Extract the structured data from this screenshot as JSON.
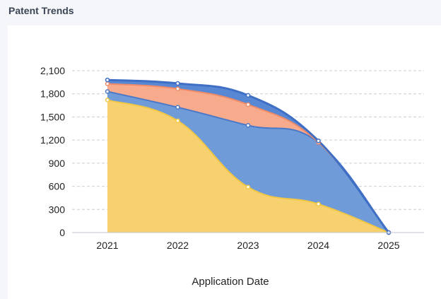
{
  "panel": {
    "title": "Patent Trends"
  },
  "chart_data": {
    "type": "area",
    "stacked": true,
    "title": "",
    "xlabel": "Application Date",
    "ylabel": "",
    "ylim": [
      0,
      2100
    ],
    "yticks": [
      "0",
      "300",
      "600",
      "900",
      "1,200",
      "1,500",
      "1,800",
      "2,100"
    ],
    "categories": [
      "2021",
      "2022",
      "2023",
      "2024",
      "2025"
    ],
    "grid": true,
    "legend": "none",
    "series": [
      {
        "values": [
          1720,
          1450,
          590,
          370,
          0
        ],
        "color": "#f7d070",
        "line": "#f2c744"
      },
      {
        "values": [
          110,
          175,
          800,
          800,
          0
        ],
        "color": "#6f9bd8",
        "line": "#4a78c8"
      },
      {
        "values": [
          100,
          240,
          270,
          0,
          0
        ],
        "color": "#f7aa8c",
        "line": "#f08b68"
      },
      {
        "values": [
          50,
          70,
          120,
          20,
          0
        ],
        "color": "#5888d4",
        "line": "#3e6fc4"
      }
    ]
  }
}
